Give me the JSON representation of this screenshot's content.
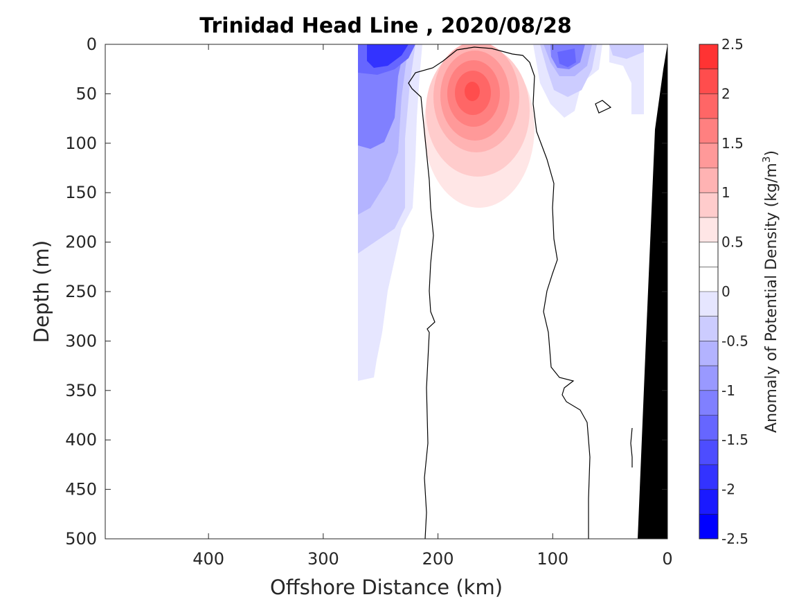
{
  "chart_data": {
    "type": "heatmap",
    "title": "Trinidad Head Line , 2020/08/28",
    "xlabel": "Offshore Distance (km)",
    "ylabel": "Depth (m)",
    "xlim": [
      490,
      0
    ],
    "ylim": [
      500,
      0
    ],
    "x_reversed": true,
    "y_reversed": true,
    "x_ticks": [
      "400",
      "300",
      "200",
      "100",
      "0"
    ],
    "y_ticks": [
      "0",
      "50",
      "100",
      "150",
      "200",
      "250",
      "300",
      "350",
      "400",
      "450",
      "500"
    ],
    "colorbar": {
      "label": "Anomaly of Potential Density (kg/m",
      "label_superscript": "3",
      "label_close": ")",
      "range": [
        -2.5,
        2.5
      ],
      "step": 0.25,
      "ticks": [
        "2.5",
        "2",
        "1.5",
        "1",
        "0.5",
        "0",
        "-0.5",
        "-1",
        "-1.5",
        "-2",
        "-2.5"
      ],
      "colors_bottom_to_top": [
        "#0000ff",
        "#1a1aff",
        "#3333ff",
        "#4d4dff",
        "#6666ff",
        "#8080ff",
        "#9999ff",
        "#b3b3ff",
        "#ccccff",
        "#e6e6ff",
        "#ffffff",
        "#ffffff",
        "#ffe6e6",
        "#ffcccc",
        "#ffb3b3",
        "#ff9999",
        "#ff8080",
        "#ff6666",
        "#ff4d4d",
        "#ff3333"
      ]
    },
    "features": [
      {
        "name": "negative-anomaly-offshore",
        "x_range_km": [
          270,
          200
        ],
        "depth_range_m": [
          0,
          340
        ],
        "min_value": -1.75
      },
      {
        "name": "positive-anomaly-eddy",
        "center_km": 170,
        "center_depth_m": 45,
        "peak_value": 2.0
      },
      {
        "name": "negative-anomaly-nearshore",
        "center_km": 90,
        "center_depth_m": 15,
        "min_value": -1.25
      },
      {
        "name": "bathymetry",
        "color": "#000000"
      }
    ],
    "grid": false,
    "colorbar_position": "right"
  }
}
